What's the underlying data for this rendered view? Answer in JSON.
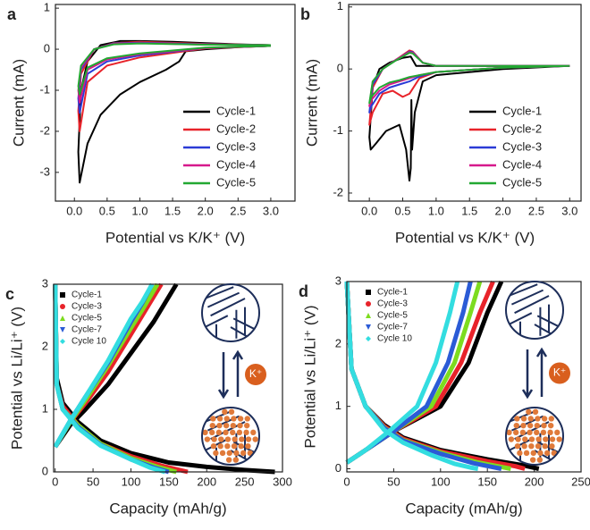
{
  "chart_data": [
    {
      "type": "line",
      "panel": "a",
      "xlabel": "Potential vs K/K⁺ (V)",
      "ylabel": "Current (mA)",
      "xlim": [
        -0.29,
        3.37
      ],
      "ylim": [
        -3.7,
        1.09
      ],
      "xticks": [
        {
          "value": 0,
          "label": "0.0"
        },
        {
          "value": 0.5,
          "label": "0.5"
        },
        {
          "value": 1,
          "label": "1.0"
        },
        {
          "value": 1.5,
          "label": "1.5"
        },
        {
          "value": 2,
          "label": "2.0"
        },
        {
          "value": 2.5,
          "label": "2.5"
        },
        {
          "value": 3,
          "label": "3.0"
        }
      ],
      "yticks": [
        -3,
        -2,
        -1,
        0,
        1
      ],
      "legend": "lower-right",
      "legend_style": "line",
      "series": [
        {
          "name": "Cycle-1",
          "color": "#000000",
          "x": [
            3.0,
            2.5,
            2.0,
            1.7,
            1.6,
            1.4,
            1.0,
            0.7,
            0.4,
            0.2,
            0.08,
            0.06,
            0.1,
            0.2,
            0.4,
            0.7,
            1.0,
            1.5,
            2.0,
            2.5,
            3.0
          ],
          "values": [
            0.08,
            0.05,
            0.0,
            -0.05,
            -0.3,
            -0.5,
            -0.8,
            -1.1,
            -1.6,
            -2.3,
            -3.25,
            -2.5,
            -1.0,
            -0.3,
            0.1,
            0.2,
            0.2,
            0.18,
            0.15,
            0.12,
            0.1
          ]
        },
        {
          "name": "Cycle-2",
          "color": "#e8232a",
          "x": [
            3.0,
            2.0,
            1.0,
            0.5,
            0.2,
            0.08,
            0.06,
            0.1,
            0.3,
            0.6,
            1.0,
            2.0,
            3.0
          ],
          "values": [
            0.08,
            0.02,
            -0.2,
            -0.4,
            -0.8,
            -2.0,
            -1.5,
            -0.6,
            0.0,
            0.15,
            0.18,
            0.13,
            0.1
          ]
        },
        {
          "name": "Cycle-3",
          "color": "#2b3bd6",
          "x": [
            3.0,
            2.0,
            1.0,
            0.5,
            0.2,
            0.08,
            0.06,
            0.1,
            0.3,
            0.6,
            1.0,
            2.0,
            3.0
          ],
          "values": [
            0.08,
            0.03,
            -0.15,
            -0.3,
            -0.6,
            -1.55,
            -1.2,
            -0.5,
            0.0,
            0.14,
            0.16,
            0.12,
            0.1
          ]
        },
        {
          "name": "Cycle-4",
          "color": "#d6198c",
          "x": [
            3.0,
            2.0,
            1.0,
            0.5,
            0.2,
            0.08,
            0.06,
            0.1,
            0.3,
            0.6,
            1.0,
            2.0,
            3.0
          ],
          "values": [
            0.08,
            0.03,
            -0.12,
            -0.25,
            -0.5,
            -1.3,
            -1.0,
            -0.45,
            0.0,
            0.13,
            0.15,
            0.11,
            0.1
          ]
        },
        {
          "name": "Cycle-5",
          "color": "#22a832",
          "x": [
            3.0,
            2.0,
            1.0,
            0.5,
            0.2,
            0.08,
            0.06,
            0.1,
            0.3,
            0.6,
            1.0,
            2.0,
            3.0
          ],
          "values": [
            0.08,
            0.04,
            -0.1,
            -0.22,
            -0.45,
            -1.1,
            -0.9,
            -0.4,
            0.0,
            0.12,
            0.14,
            0.11,
            0.1
          ]
        }
      ]
    },
    {
      "type": "line",
      "panel": "b",
      "xlabel": "Potential vs K/K⁺ (V)",
      "ylabel": "Current (mA)",
      "xlim": [
        -0.31,
        3.17
      ],
      "ylim": [
        -2.13,
        1.04
      ],
      "xticks": [
        {
          "value": 0,
          "label": "0.0"
        },
        {
          "value": 0.5,
          "label": "0.5"
        },
        {
          "value": 1,
          "label": "1.0"
        },
        {
          "value": 1.5,
          "label": "1.5"
        },
        {
          "value": 2,
          "label": "2.0"
        },
        {
          "value": 2.5,
          "label": "2.5"
        },
        {
          "value": 3,
          "label": "3.0"
        }
      ],
      "yticks": [
        -2,
        -1,
        0,
        1
      ],
      "legend": "lower-right",
      "legend_style": "line",
      "series": [
        {
          "name": "Cycle-1",
          "color": "#000000",
          "x": [
            3.0,
            2.0,
            1.0,
            0.8,
            0.68,
            0.64,
            0.63,
            0.62,
            0.6,
            0.55,
            0.45,
            0.35,
            0.25,
            0.1,
            0.02,
            0.0,
            0.05,
            0.15,
            0.3,
            0.5,
            0.62,
            0.7,
            1.0,
            2.0,
            3.0
          ],
          "values": [
            0.05,
            0.0,
            -0.1,
            -0.2,
            -0.7,
            -1.3,
            -0.5,
            -1.6,
            -1.8,
            -1.3,
            -0.9,
            -0.95,
            -1.0,
            -1.2,
            -1.3,
            -1.1,
            -0.3,
            0.0,
            0.1,
            0.18,
            0.2,
            0.05,
            0.05,
            0.05,
            0.05
          ]
        },
        {
          "name": "Cycle-2",
          "color": "#e8232a",
          "x": [
            3.0,
            2.0,
            1.0,
            0.75,
            0.6,
            0.5,
            0.35,
            0.2,
            0.05,
            0.0,
            0.05,
            0.2,
            0.4,
            0.6,
            0.65,
            0.8,
            1.0,
            2.0,
            3.0
          ],
          "values": [
            0.05,
            0.02,
            -0.05,
            -0.15,
            -0.4,
            -0.45,
            -0.35,
            -0.4,
            -0.7,
            -0.9,
            -0.3,
            0.0,
            0.15,
            0.3,
            0.28,
            0.1,
            0.05,
            0.05,
            0.05
          ]
        },
        {
          "name": "Cycle-3",
          "color": "#2b3bd6",
          "x": [
            3.0,
            2.0,
            1.0,
            0.75,
            0.6,
            0.45,
            0.3,
            0.15,
            0.03,
            0.0,
            0.05,
            0.2,
            0.4,
            0.6,
            0.65,
            0.8,
            1.0,
            2.0,
            3.0
          ],
          "values": [
            0.05,
            0.02,
            -0.05,
            -0.12,
            -0.2,
            -0.25,
            -0.3,
            -0.4,
            -0.6,
            -0.7,
            -0.25,
            0.0,
            0.15,
            0.28,
            0.27,
            0.1,
            0.05,
            0.05,
            0.05
          ]
        },
        {
          "name": "Cycle-4",
          "color": "#d6198c",
          "x": [
            3.0,
            2.0,
            1.0,
            0.75,
            0.6,
            0.45,
            0.3,
            0.15,
            0.03,
            0.0,
            0.05,
            0.2,
            0.4,
            0.6,
            0.65,
            0.8,
            1.0,
            2.0,
            3.0
          ],
          "values": [
            0.05,
            0.02,
            -0.05,
            -0.1,
            -0.15,
            -0.2,
            -0.25,
            -0.35,
            -0.5,
            -0.6,
            -0.2,
            0.0,
            0.15,
            0.27,
            0.26,
            0.1,
            0.05,
            0.05,
            0.05
          ]
        },
        {
          "name": "Cycle-5",
          "color": "#22a832",
          "x": [
            3.0,
            2.0,
            1.0,
            0.75,
            0.6,
            0.45,
            0.3,
            0.15,
            0.03,
            0.0,
            0.05,
            0.2,
            0.4,
            0.6,
            0.65,
            0.8,
            1.0,
            2.0,
            3.0
          ],
          "values": [
            0.05,
            0.02,
            -0.05,
            -0.1,
            -0.13,
            -0.18,
            -0.22,
            -0.3,
            -0.45,
            -0.55,
            -0.2,
            0.0,
            0.14,
            0.26,
            0.25,
            0.1,
            0.05,
            0.05,
            0.05
          ]
        }
      ]
    },
    {
      "type": "line",
      "panel": "c",
      "xlabel": "Capacity (mAh/g)",
      "ylabel": "Potential vs Li/Li⁺ (V)",
      "inset_label": "K⁺",
      "xlim": [
        -2,
        300
      ],
      "ylim": [
        0,
        3
      ],
      "xticks": [
        0,
        50,
        100,
        150,
        200,
        250,
        300
      ],
      "yticks": [
        0,
        1,
        2,
        3
      ],
      "legend": "upper-left",
      "legend_style": "marker",
      "series": [
        {
          "name": "Cycle-1",
          "color": "#000000",
          "marker": "square",
          "x": [
            0,
            2,
            10,
            30,
            60,
            100,
            150,
            200,
            250,
            290,
            null,
            0,
            20,
            40,
            70,
            100,
            130,
            160
          ],
          "values": [
            3.0,
            1.5,
            1.1,
            0.8,
            0.5,
            0.3,
            0.15,
            0.08,
            0.03,
            0.0,
            null,
            0.4,
            0.75,
            1.0,
            1.4,
            1.9,
            2.4,
            3.0
          ]
        },
        {
          "name": "Cycle-3",
          "color": "#e8232a",
          "marker": "circle",
          "x": [
            0,
            2,
            10,
            30,
            60,
            100,
            140,
            175,
            null,
            0,
            20,
            40,
            70,
            100,
            120,
            140
          ],
          "values": [
            3.0,
            1.4,
            1.05,
            0.75,
            0.45,
            0.25,
            0.1,
            0.0,
            null,
            0.4,
            0.8,
            1.1,
            1.6,
            2.2,
            2.6,
            3.0
          ]
        },
        {
          "name": "Cycle-5",
          "color": "#7ddc1f",
          "marker": "triangle",
          "x": [
            0,
            2,
            10,
            30,
            60,
            100,
            135,
            160,
            null,
            0,
            20,
            40,
            70,
            100,
            118,
            135
          ],
          "values": [
            3.0,
            1.4,
            1.0,
            0.75,
            0.45,
            0.22,
            0.08,
            0.0,
            null,
            0.4,
            0.8,
            1.15,
            1.7,
            2.3,
            2.65,
            3.0
          ]
        },
        {
          "name": "Cycle-7",
          "color": "#2b5bd6",
          "marker": "triangle-down",
          "x": [
            0,
            2,
            10,
            30,
            60,
            100,
            130,
            150,
            null,
            0,
            20,
            40,
            70,
            100,
            115,
            128
          ],
          "values": [
            3.0,
            1.4,
            1.0,
            0.72,
            0.43,
            0.2,
            0.07,
            0.0,
            null,
            0.4,
            0.82,
            1.2,
            1.75,
            2.4,
            2.7,
            3.0
          ]
        },
        {
          "name": "Cycle 10",
          "color": "#33dde0",
          "marker": "diamond",
          "x": [
            0,
            2,
            10,
            30,
            60,
            100,
            125,
            145,
            null,
            0,
            20,
            40,
            70,
            100,
            115,
            128
          ],
          "values": [
            3.0,
            1.4,
            1.0,
            0.7,
            0.42,
            0.2,
            0.07,
            0.0,
            null,
            0.4,
            0.82,
            1.2,
            1.78,
            2.45,
            2.72,
            3.0
          ]
        }
      ]
    },
    {
      "type": "line",
      "panel": "d",
      "xlabel": "Capacity (mAh/g)",
      "ylabel": "Potential vs Li/Li⁺ (V)",
      "inset_label": "K⁺",
      "xlim": [
        0,
        250
      ],
      "ylim": [
        -0.05,
        3
      ],
      "xticks": [
        0,
        50,
        100,
        150,
        200,
        250
      ],
      "yticks": [
        0,
        1,
        2,
        3
      ],
      "legend": "upper-left",
      "legend_style": "marker",
      "series": [
        {
          "name": "Cycle-1",
          "color": "#000000",
          "marker": "square",
          "x": [
            0,
            5,
            20,
            40,
            60,
            100,
            150,
            190,
            205,
            null,
            0,
            20,
            50,
            100,
            130,
            150,
            165
          ],
          "values": [
            3.0,
            1.6,
            1.0,
            0.7,
            0.5,
            0.3,
            0.15,
            0.05,
            0.0,
            null,
            0.1,
            0.3,
            0.6,
            1.0,
            1.7,
            2.5,
            3.0
          ]
        },
        {
          "name": "Cycle-3",
          "color": "#e8232a",
          "marker": "circle",
          "x": [
            0,
            5,
            20,
            40,
            60,
            100,
            150,
            180,
            190,
            null,
            0,
            20,
            50,
            95,
            122,
            142,
            156
          ],
          "values": [
            3.0,
            1.6,
            1.0,
            0.68,
            0.48,
            0.28,
            0.12,
            0.04,
            0.0,
            null,
            0.1,
            0.3,
            0.6,
            1.0,
            1.7,
            2.5,
            3.0
          ]
        },
        {
          "name": "Cycle-5",
          "color": "#7ddc1f",
          "marker": "triangle",
          "x": [
            0,
            5,
            20,
            40,
            60,
            100,
            140,
            165,
            175,
            null,
            0,
            20,
            50,
            90,
            115,
            132,
            142
          ],
          "values": [
            3.0,
            1.6,
            1.0,
            0.66,
            0.46,
            0.26,
            0.1,
            0.03,
            0.0,
            null,
            0.1,
            0.3,
            0.6,
            1.0,
            1.7,
            2.5,
            3.0
          ]
        },
        {
          "name": "Cycle-7",
          "color": "#2b5bd6",
          "marker": "triangle-down",
          "x": [
            0,
            5,
            20,
            40,
            60,
            100,
            135,
            155,
            165,
            null,
            0,
            20,
            50,
            85,
            108,
            124,
            132
          ],
          "values": [
            3.0,
            1.6,
            1.0,
            0.65,
            0.45,
            0.24,
            0.09,
            0.03,
            0.0,
            null,
            0.1,
            0.3,
            0.6,
            1.0,
            1.7,
            2.5,
            3.0
          ]
        },
        {
          "name": "Cycle 10",
          "color": "#33dde0",
          "marker": "diamond",
          "x": [
            0,
            5,
            20,
            40,
            60,
            90,
            115,
            132,
            140,
            null,
            0,
            20,
            45,
            75,
            95,
            110,
            118
          ],
          "values": [
            3.0,
            1.6,
            1.0,
            0.62,
            0.42,
            0.22,
            0.08,
            0.02,
            0.0,
            null,
            0.1,
            0.3,
            0.6,
            1.0,
            1.7,
            2.5,
            3.0
          ]
        }
      ]
    }
  ]
}
